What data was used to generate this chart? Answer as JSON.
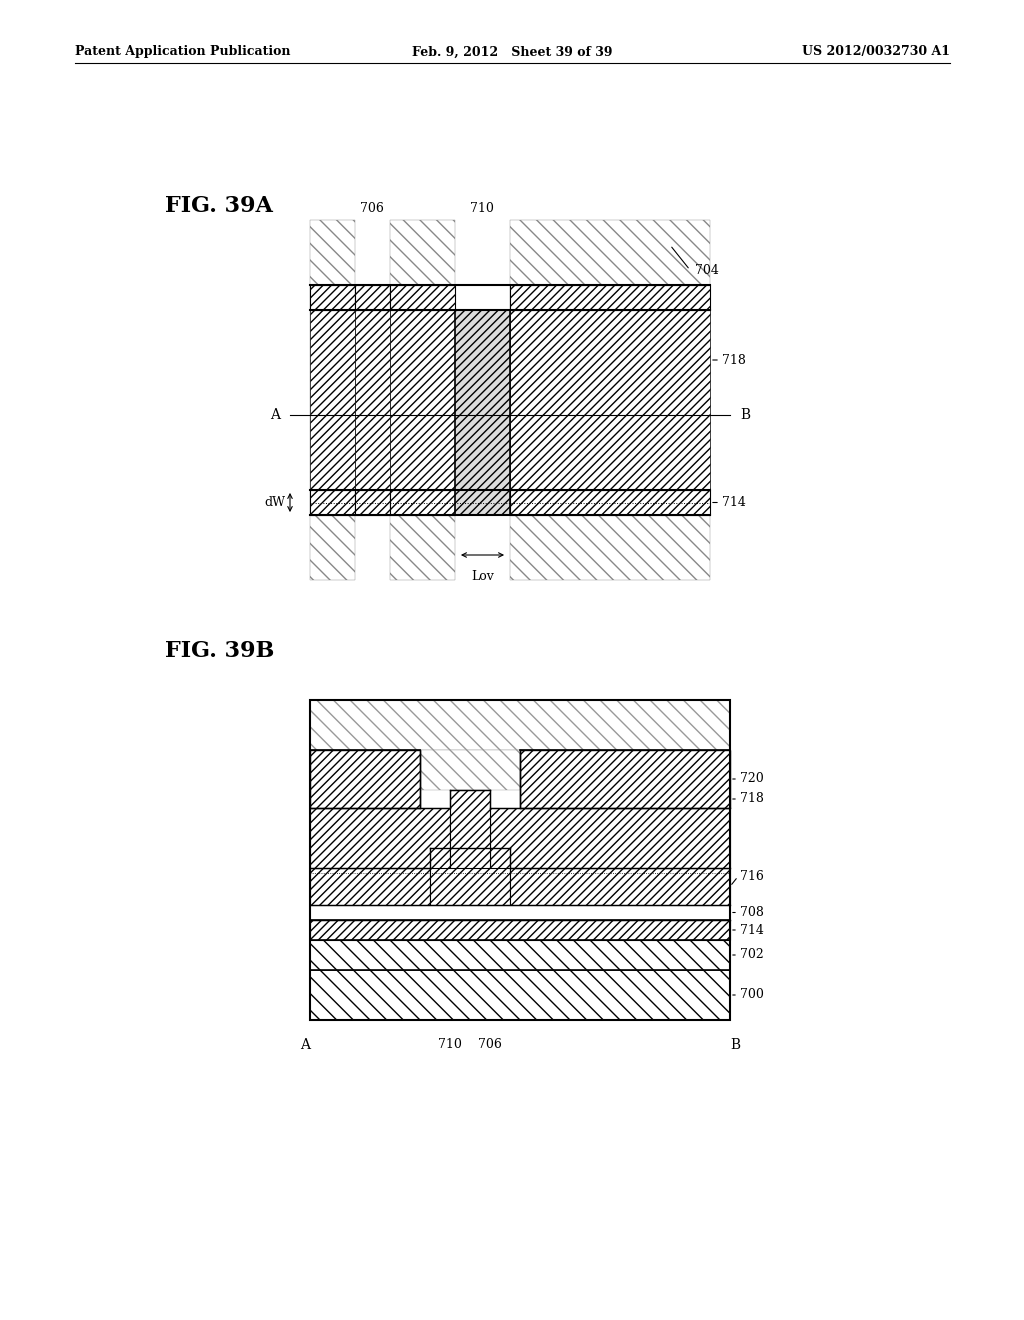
{
  "header_left": "Patent Application Publication",
  "header_mid": "Feb. 9, 2012   Sheet 39 of 39",
  "header_right": "US 2012/0032730 A1",
  "fig_a_label": "FIG. 39A",
  "fig_b_label": "FIG. 39B",
  "bg_color": "#ffffff"
}
